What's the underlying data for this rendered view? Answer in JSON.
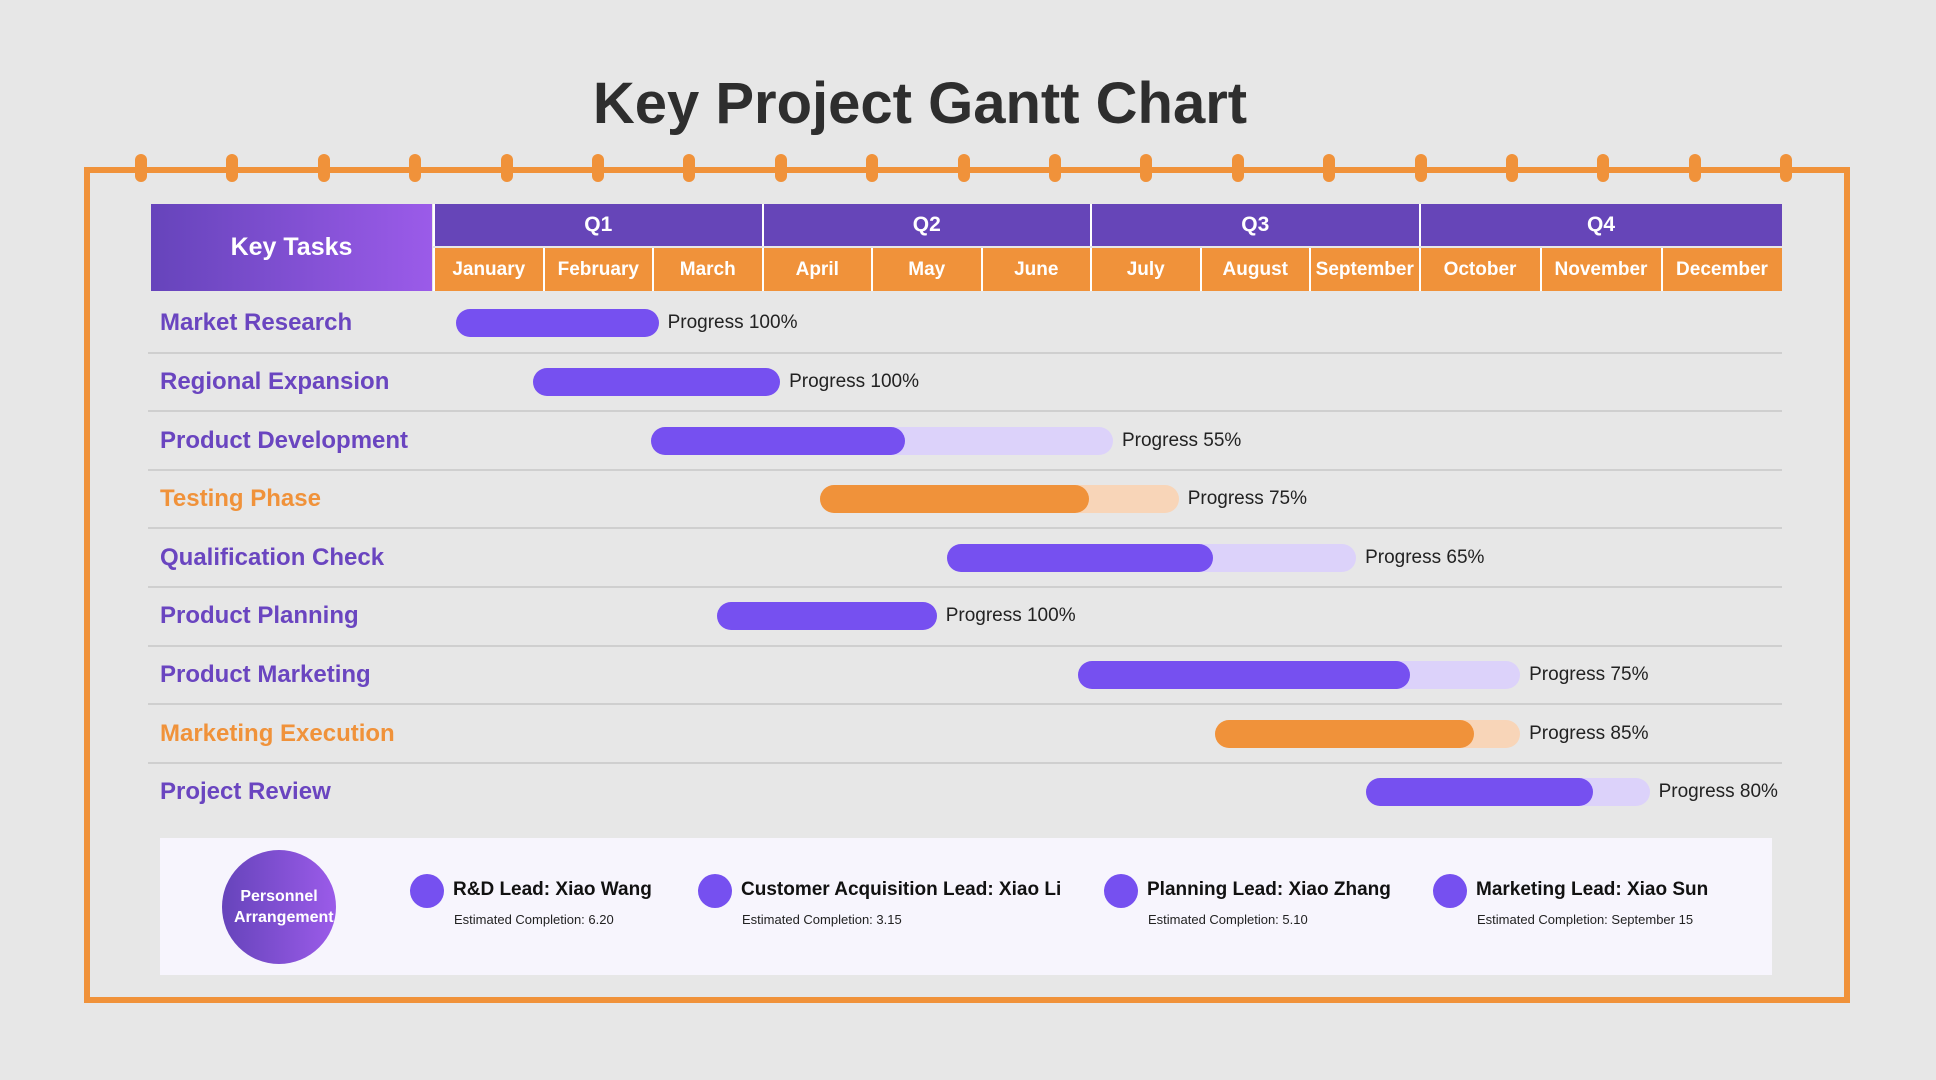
{
  "chart_data": {
    "type": "gantt",
    "title": "Key Project Gantt Chart",
    "header_label": "Key Tasks",
    "quarters": [
      "Q1",
      "Q2",
      "Q3",
      "Q4"
    ],
    "months": [
      "January",
      "February",
      "March",
      "April",
      "May",
      "June",
      "July",
      "August",
      "September",
      "October",
      "November",
      "December"
    ],
    "tasks": [
      {
        "name": "Market Research",
        "start_month": 0.21,
        "end_month": 2.06,
        "progress": 100,
        "progress_label": "Progress 100%",
        "color": "purple"
      },
      {
        "name": "Regional Expansion",
        "start_month": 0.91,
        "end_month": 3.17,
        "progress": 100,
        "progress_label": "Progress 100%",
        "color": "purple"
      },
      {
        "name": "Product Development",
        "start_month": 1.99,
        "end_month": 6.21,
        "progress": 55,
        "progress_label": "Progress 55%",
        "color": "purple"
      },
      {
        "name": "Testing Phase",
        "start_month": 3.53,
        "end_month": 6.81,
        "progress": 75,
        "progress_label": "Progress 75%",
        "color": "orange"
      },
      {
        "name": "Qualification Check",
        "start_month": 4.69,
        "end_month": 8.43,
        "progress": 65,
        "progress_label": "Progress 65%",
        "color": "purple"
      },
      {
        "name": "Product Planning",
        "start_month": 2.59,
        "end_month": 4.6,
        "progress": 100,
        "progress_label": "Progress 100%",
        "color": "purple"
      },
      {
        "name": "Product Marketing",
        "start_month": 5.89,
        "end_month": 9.84,
        "progress": 75,
        "progress_label": "Progress 75%",
        "color": "purple"
      },
      {
        "name": "Marketing Execution",
        "start_month": 7.14,
        "end_month": 9.84,
        "progress": 85,
        "progress_label": "Progress 85%",
        "color": "orange"
      },
      {
        "name": "Project Review",
        "start_month": 8.52,
        "end_month": 10.91,
        "progress": 80,
        "progress_label": "Progress 80%",
        "color": "purple"
      }
    ],
    "colors": {
      "purple": "#7650f0",
      "purple_light": "#dcd2fa",
      "purple_label": "#6a45c0",
      "orange": "#f0923a",
      "orange_light": "#f8d5b8",
      "orange_label": "#f0923a",
      "header_purple": "#6645b8"
    }
  },
  "personnel": {
    "label": "Personnel Arrangement",
    "leads": [
      {
        "title": "R&D Lead: Xiao Wang",
        "completion": "Estimated Completion: 6.20"
      },
      {
        "title": "Customer Acquisition Lead: Xiao Li",
        "completion": "Estimated Completion: 3.15"
      },
      {
        "title": "Planning Lead: Xiao Zhang",
        "completion": "Estimated Completion: 5.10"
      },
      {
        "title": "Marketing Lead: Xiao Sun",
        "completion": "Estimated Completion: September 15"
      }
    ]
  }
}
